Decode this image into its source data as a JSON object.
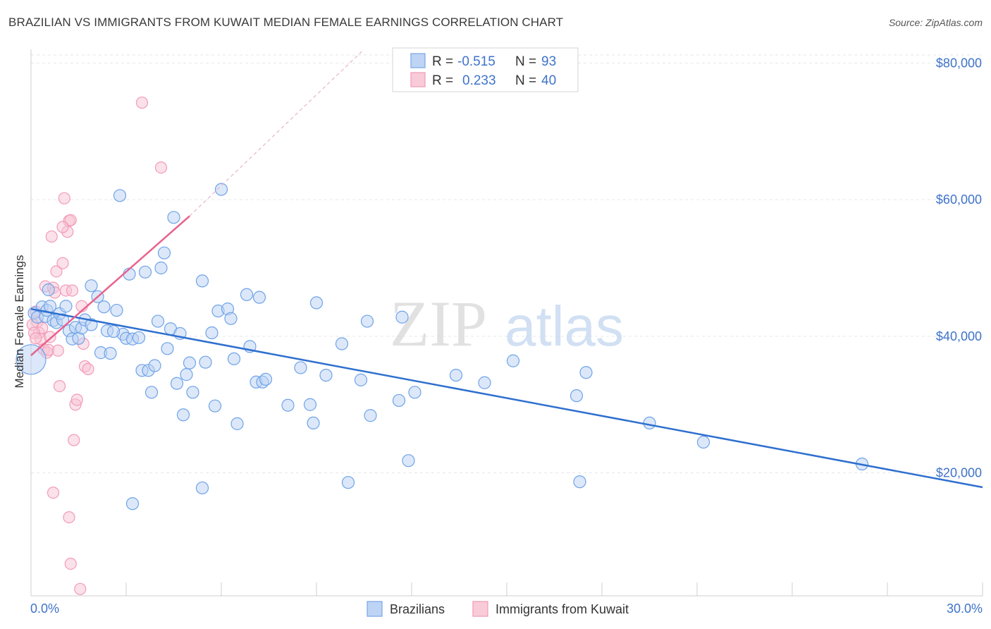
{
  "title": "BRAZILIAN VS IMMIGRANTS FROM KUWAIT MEDIAN FEMALE EARNINGS CORRELATION CHART",
  "source": "Source: ZipAtlas.com",
  "watermark": {
    "zip": "ZIP",
    "atlas": "atlas"
  },
  "chart_data": {
    "type": "scatter",
    "title": "BRAZILIAN VS IMMIGRANTS FROM KUWAIT MEDIAN FEMALE EARNINGS CORRELATION CHART",
    "xlabel": "",
    "ylabel": "Median Female Earnings",
    "xlim": [
      0,
      30
    ],
    "ylim": [
      2000,
      82000
    ],
    "x_tick_labels": [
      "0.0%",
      "30.0%"
    ],
    "y_ticks": [
      20000,
      40000,
      60000,
      80000
    ],
    "y_tick_labels": [
      "$20,000",
      "$40,000",
      "$60,000",
      "$80,000"
    ],
    "grid": true,
    "legend": {
      "position": "top-center",
      "entries": [
        {
          "r_label": "R =",
          "r_value": "-0.515",
          "n_label": "N =",
          "n_value": "93"
        },
        {
          "r_label": "R =",
          "r_value": "0.233",
          "n_label": "N =",
          "n_value": "40"
        }
      ]
    },
    "series": [
      {
        "name": "Brazilians",
        "color": "#6fa3e8",
        "line_color": "#2e6fcf",
        "trend": {
          "x0": 0,
          "y0": 44000,
          "x1": 30,
          "y1": 17900
        },
        "points": [
          [
            0.1,
            43400
          ],
          [
            0.2,
            42800
          ],
          [
            0.35,
            44300
          ],
          [
            0.45,
            42900
          ],
          [
            0.5,
            43800
          ],
          [
            0.55,
            46800
          ],
          [
            0.6,
            44400
          ],
          [
            0.7,
            42300
          ],
          [
            0.8,
            42000
          ],
          [
            0.9,
            43300
          ],
          [
            1.0,
            42400
          ],
          [
            1.1,
            44400
          ],
          [
            1.2,
            40800
          ],
          [
            1.3,
            39600
          ],
          [
            1.4,
            41300
          ],
          [
            1.5,
            39700
          ],
          [
            1.6,
            41200
          ],
          [
            1.7,
            42400
          ],
          [
            1.9,
            47400
          ],
          [
            2.1,
            45800
          ],
          [
            2.2,
            37600
          ],
          [
            2.3,
            44300
          ],
          [
            2.4,
            40800
          ],
          [
            2.5,
            37500
          ],
          [
            2.7,
            43800
          ],
          [
            2.8,
            60600
          ],
          [
            2.9,
            40300
          ],
          [
            3.0,
            39700
          ],
          [
            3.1,
            49100
          ],
          [
            3.2,
            39600
          ],
          [
            3.4,
            39800
          ],
          [
            3.5,
            35000
          ],
          [
            3.6,
            49400
          ],
          [
            3.7,
            35000
          ],
          [
            3.8,
            31800
          ],
          [
            3.9,
            35700
          ],
          [
            4.0,
            42200
          ],
          [
            4.1,
            50000
          ],
          [
            4.2,
            52200
          ],
          [
            4.3,
            38200
          ],
          [
            4.4,
            41100
          ],
          [
            4.5,
            57400
          ],
          [
            4.6,
            33100
          ],
          [
            4.7,
            40400
          ],
          [
            4.8,
            28500
          ],
          [
            4.9,
            34400
          ],
          [
            5.0,
            36100
          ],
          [
            5.1,
            31800
          ],
          [
            5.4,
            48100
          ],
          [
            5.5,
            36200
          ],
          [
            5.7,
            40500
          ],
          [
            5.8,
            29800
          ],
          [
            5.9,
            43700
          ],
          [
            6.0,
            61500
          ],
          [
            6.2,
            44000
          ],
          [
            6.3,
            42600
          ],
          [
            6.4,
            36700
          ],
          [
            6.5,
            27200
          ],
          [
            6.8,
            46100
          ],
          [
            6.9,
            38500
          ],
          [
            7.1,
            33300
          ],
          [
            7.2,
            45700
          ],
          [
            7.3,
            33300
          ],
          [
            7.4,
            33700
          ],
          [
            8.1,
            29900
          ],
          [
            8.5,
            35400
          ],
          [
            8.8,
            30000
          ],
          [
            8.9,
            27300
          ],
          [
            9.0,
            44900
          ],
          [
            9.3,
            34300
          ],
          [
            9.8,
            38900
          ],
          [
            10.0,
            18600
          ],
          [
            10.4,
            33600
          ],
          [
            10.6,
            42200
          ],
          [
            10.7,
            28400
          ],
          [
            11.6,
            30600
          ],
          [
            11.7,
            42800
          ],
          [
            11.9,
            21800
          ],
          [
            12.1,
            31800
          ],
          [
            13.4,
            34300
          ],
          [
            14.3,
            33200
          ],
          [
            15.2,
            36400
          ],
          [
            17.2,
            31300
          ],
          [
            17.3,
            18700
          ],
          [
            17.5,
            34700
          ],
          [
            19.5,
            27300
          ],
          [
            21.2,
            24500
          ],
          [
            26.2,
            21300
          ],
          [
            3.2,
            15500
          ],
          [
            5.4,
            17800
          ],
          [
            0.0,
            36600
          ],
          [
            1.9,
            41700
          ],
          [
            2.6,
            40700
          ]
        ]
      },
      {
        "name": "Immigrants from Kuwait",
        "color": "#f29bb8",
        "line_color": "#e8638f",
        "trend": {
          "x0": 0,
          "y0": 37200,
          "x1": 5.0,
          "y1": 57600
        },
        "trend_extension": {
          "x0": 5.0,
          "y0": 57600,
          "x1": 10.5,
          "y1": 82000
        },
        "points": [
          [
            0.15,
            43600
          ],
          [
            0.2,
            42100
          ],
          [
            0.25,
            40500
          ],
          [
            0.3,
            39600
          ],
          [
            0.35,
            41200
          ],
          [
            0.4,
            38100
          ],
          [
            0.45,
            47300
          ],
          [
            0.5,
            37600
          ],
          [
            0.55,
            38000
          ],
          [
            0.6,
            39900
          ],
          [
            0.65,
            54600
          ],
          [
            0.7,
            47100
          ],
          [
            0.75,
            46400
          ],
          [
            0.8,
            49500
          ],
          [
            0.85,
            37900
          ],
          [
            0.9,
            32700
          ],
          [
            1.0,
            50700
          ],
          [
            1.05,
            60200
          ],
          [
            1.1,
            46700
          ],
          [
            1.15,
            55300
          ],
          [
            1.2,
            56900
          ],
          [
            1.25,
            57000
          ],
          [
            1.3,
            46700
          ],
          [
            1.35,
            24800
          ],
          [
            1.4,
            30000
          ],
          [
            1.45,
            30700
          ],
          [
            1.6,
            44400
          ],
          [
            1.65,
            38900
          ],
          [
            1.7,
            35600
          ],
          [
            1.8,
            35200
          ],
          [
            3.5,
            74200
          ],
          [
            4.1,
            64700
          ],
          [
            0.7,
            17100
          ],
          [
            1.2,
            13500
          ],
          [
            1.25,
            6700
          ],
          [
            1.55,
            3000
          ],
          [
            0.05,
            41700
          ],
          [
            0.1,
            40500
          ],
          [
            0.15,
            39700
          ],
          [
            1.0,
            56000
          ]
        ]
      }
    ]
  }
}
